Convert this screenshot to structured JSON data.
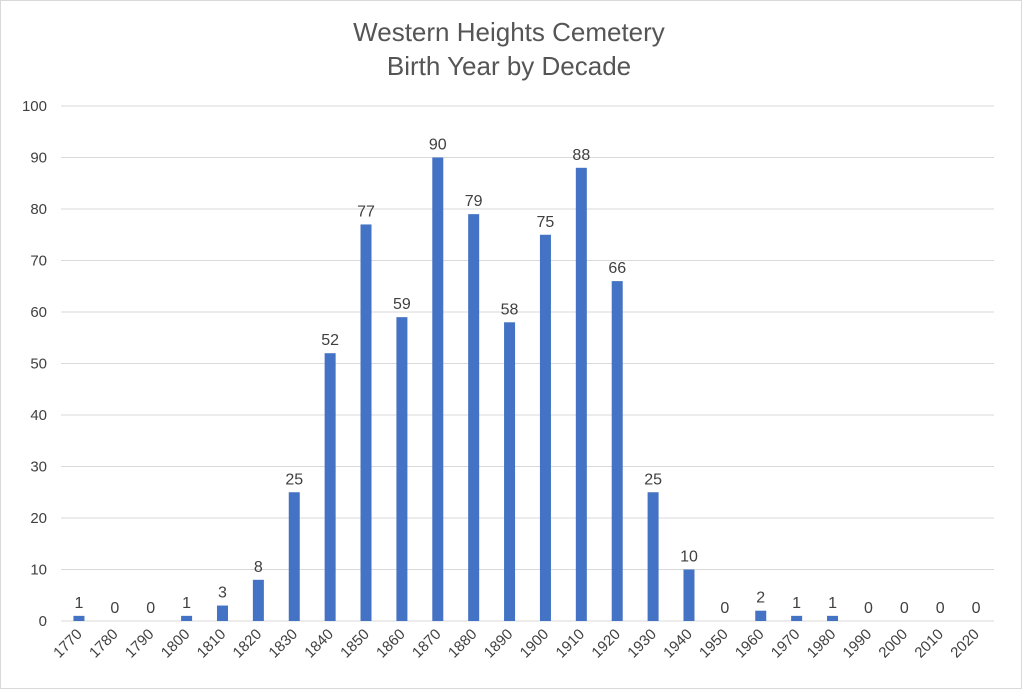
{
  "chart_data": {
    "type": "bar",
    "title": "Western Heights Cemetery",
    "subtitle": "Birth Year by Decade",
    "xlabel": "",
    "ylabel": "",
    "ylim": [
      0,
      100
    ],
    "yticks": [
      0,
      10,
      20,
      30,
      40,
      50,
      60,
      70,
      80,
      90,
      100
    ],
    "grid": true,
    "legend": "none",
    "bar_color": "#4472c4",
    "categories": [
      "1770",
      "1780",
      "1790",
      "1800",
      "1810",
      "1820",
      "1830",
      "1840",
      "1850",
      "1860",
      "1870",
      "1880",
      "1890",
      "1900",
      "1910",
      "1920",
      "1930",
      "1940",
      "1950",
      "1960",
      "1970",
      "1980",
      "1990",
      "2000",
      "2010",
      "2020"
    ],
    "values": [
      1,
      0,
      0,
      1,
      3,
      8,
      25,
      52,
      77,
      59,
      90,
      79,
      58,
      75,
      88,
      66,
      25,
      10,
      0,
      2,
      1,
      1,
      0,
      0,
      0,
      0
    ],
    "data_labels": [
      "1",
      "0",
      "0",
      "1",
      "3",
      "8",
      "25",
      "52",
      "77",
      "59",
      "90",
      "79",
      "58",
      "75",
      "88",
      "66",
      "25",
      "10",
      "0",
      "2",
      "1",
      "1",
      "0",
      "0",
      "0",
      "0"
    ]
  }
}
